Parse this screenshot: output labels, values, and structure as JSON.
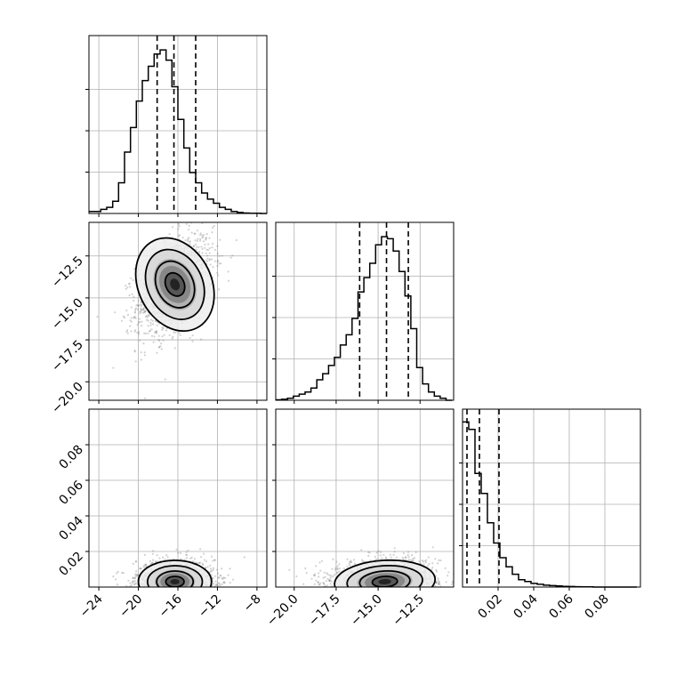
{
  "chart_data": {
    "type": "corner",
    "parameters": 3,
    "colors": {
      "line": "#000000",
      "grid": "#b0b0b0",
      "points": "#7f7f7f",
      "background": "#ffffff"
    },
    "grid": true,
    "params": [
      {
        "range": [
          -25,
          -7
        ],
        "ticks": [
          -24,
          -20,
          -16,
          -12,
          -8
        ],
        "tick_labels": [
          "−24",
          "−20",
          "−16",
          "−12",
          "−8"
        ],
        "quantiles": [
          -18.1,
          -16.4,
          -14.2
        ],
        "hist_edges_start": -25,
        "hist_bin_width": 0.6,
        "hist_heights": [
          0.01,
          0.01,
          0.02,
          0.03,
          0.06,
          0.15,
          0.3,
          0.42,
          0.55,
          0.65,
          0.72,
          0.78,
          0.8,
          0.75,
          0.62,
          0.46,
          0.32,
          0.2,
          0.15,
          0.1,
          0.07,
          0.05,
          0.03,
          0.02,
          0.01,
          0.005,
          0.002,
          0.001,
          0.001,
          0.0
        ],
        "hist_ylim": [
          0,
          0.87
        ]
      },
      {
        "range": [
          -21.1,
          -10.5
        ],
        "ticks": [
          -20.0,
          -17.5,
          -15.0,
          -12.5
        ],
        "tick_labels": [
          "−20.0",
          "−17.5",
          "−15.0",
          "−12.5"
        ],
        "quantiles": [
          -16.1,
          -14.5,
          -13.2
        ],
        "hist_edges_start": -21.1,
        "hist_bin_width": 0.35,
        "hist_heights": [
          0.002,
          0.005,
          0.01,
          0.02,
          0.03,
          0.04,
          0.06,
          0.1,
          0.13,
          0.17,
          0.21,
          0.27,
          0.32,
          0.4,
          0.53,
          0.6,
          0.67,
          0.76,
          0.8,
          0.79,
          0.73,
          0.63,
          0.51,
          0.35,
          0.16,
          0.08,
          0.04,
          0.02,
          0.01,
          0.0
        ],
        "hist_ylim": [
          0,
          0.87
        ]
      },
      {
        "range": [
          0,
          0.1
        ],
        "ticks": [
          0.02,
          0.04,
          0.06,
          0.08
        ],
        "tick_labels": [
          "0.02",
          "0.04",
          "0.06",
          "0.08"
        ],
        "quantiles": [
          0.0025,
          0.0095,
          0.0205
        ],
        "hist_edges_start": 0,
        "hist_bin_width": 0.0035,
        "hist_heights": [
          0.9,
          0.86,
          0.62,
          0.51,
          0.35,
          0.24,
          0.16,
          0.11,
          0.07,
          0.04,
          0.03,
          0.02,
          0.015,
          0.01,
          0.008,
          0.006,
          0.004,
          0.003,
          0.002,
          0.001,
          0.001,
          0.0,
          0.0,
          0.0,
          0.0,
          0.0,
          0.0,
          0.0
        ],
        "hist_ylim": [
          0,
          0.97
        ]
      }
    ],
    "y_axis_ticks_row2": {
      "ticks": [
        -20.0,
        -17.5,
        -15.0,
        -12.5
      ],
      "tick_labels": [
        "−20.0",
        "−17.5",
        "−15.0",
        "−12.5"
      ]
    },
    "y_axis_ticks_row3": {
      "ticks": [
        0.02,
        0.04,
        0.06,
        0.08
      ],
      "tick_labels": [
        "0.02",
        "0.04",
        "0.06",
        "0.08"
      ]
    },
    "pairs": [
      {
        "x": 0,
        "y": 1,
        "center": [
          -16.3,
          -14.2
        ],
        "sd": [
          1.85,
          1.45
        ],
        "corr": 0.42
      },
      {
        "x": 0,
        "y": 2,
        "center": [
          -16.3,
          0.003
        ],
        "sd": [
          1.85,
          0.006
        ],
        "corr": 0.0,
        "clip_y_min": 0
      },
      {
        "x": 1,
        "y": 2,
        "center": [
          -14.6,
          0.003
        ],
        "sd": [
          1.5,
          0.006
        ],
        "corr": 0.15,
        "clip_y_min": 0
      }
    ],
    "contour_levels_sigma": [
      0.5,
      1.0,
      1.5,
      2.0
    ],
    "n_scatter_points": 1400
  }
}
